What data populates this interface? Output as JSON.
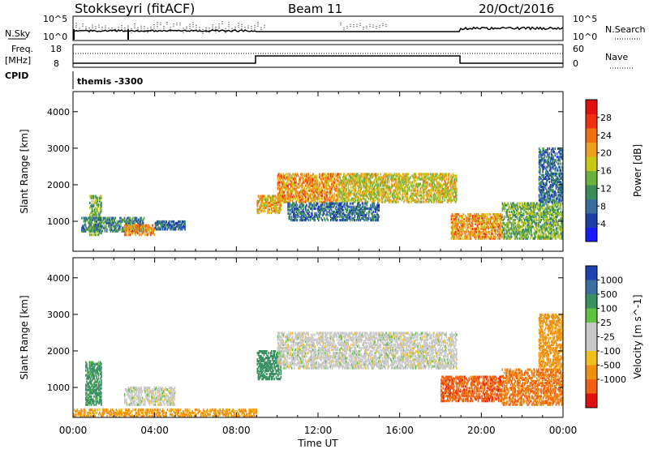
{
  "header": {
    "station": "Stokkseyri (fitACF)",
    "beam": "Beam 11",
    "date": "20/Oct/2016"
  },
  "noise_panel": {
    "left_label": "N.Sky",
    "left_ticks": [
      "10^5",
      "10^0"
    ],
    "right_ticks": [
      "10^5",
      "10^0"
    ],
    "right_label": "N.Search"
  },
  "freq_panel": {
    "left_label_top": "Freq.",
    "left_label_bottom": "[MHz]",
    "left_ticks": [
      "18",
      "8"
    ],
    "right_ticks": [
      "60",
      "0"
    ],
    "right_label": "Nave",
    "cpid_label": "CPID",
    "cpid_value": "themis -3300"
  },
  "x_axis": {
    "label": "Time UT",
    "ticks": [
      "00:00",
      "04:00",
      "08:00",
      "12:00",
      "16:00",
      "20:00",
      "00:00"
    ]
  },
  "colors": {
    "power": [
      "#1a1aff",
      "#1f3fa8",
      "#3a6e9e",
      "#3a8c5a",
      "#6ab23c",
      "#c8c814",
      "#f0a020",
      "#f07010",
      "#f03010",
      "#e01010"
    ],
    "velocity_pos": [
      "#2040b0",
      "#3a70a0",
      "#3a9060",
      "#60c040"
    ],
    "velocity_zero": "#c8c8c8",
    "velocity_neg": [
      "#f0c020",
      "#f09010",
      "#f06010",
      "#e01010"
    ]
  },
  "chart_data": [
    {
      "type": "heatmap",
      "title": "Power",
      "xlabel": "Time UT",
      "ylabel": "Slant Range [km]",
      "x_range": [
        "00:00",
        "24:00"
      ],
      "ylim": [
        180,
        4550
      ],
      "y_ticks": [
        1000,
        2000,
        3000,
        4000
      ],
      "colorbar": {
        "label": "Power [dB]",
        "ticks": [
          4,
          8,
          12,
          16,
          20,
          24,
          28
        ],
        "range": [
          0,
          32
        ]
      },
      "regions": [
        {
          "t0": 0.8,
          "t1": 1.4,
          "r0": 600,
          "r1": 1700,
          "mean_db": 14
        },
        {
          "t0": 0.4,
          "t1": 3.5,
          "r0": 700,
          "r1": 1100,
          "mean_db": 10
        },
        {
          "t0": 2.5,
          "t1": 4.0,
          "r0": 600,
          "r1": 900,
          "mean_db": 22
        },
        {
          "t0": 4.0,
          "t1": 5.5,
          "r0": 750,
          "r1": 1000,
          "mean_db": 8
        },
        {
          "t0": 9.0,
          "t1": 10.2,
          "r0": 1200,
          "r1": 1700,
          "mean_db": 20
        },
        {
          "t0": 10.0,
          "t1": 13.0,
          "r0": 1500,
          "r1": 2300,
          "mean_db": 22
        },
        {
          "t0": 13.0,
          "t1": 18.8,
          "r0": 1500,
          "r1": 2300,
          "mean_db": 18
        },
        {
          "t0": 10.5,
          "t1": 15.0,
          "r0": 1000,
          "r1": 1500,
          "mean_db": 8
        },
        {
          "t0": 18.5,
          "t1": 21.0,
          "r0": 500,
          "r1": 1200,
          "mean_db": 22
        },
        {
          "t0": 21.0,
          "t1": 24.0,
          "r0": 500,
          "r1": 1500,
          "mean_db": 14
        },
        {
          "t0": 22.8,
          "t1": 24.0,
          "r0": 1500,
          "r1": 3000,
          "mean_db": 8
        }
      ]
    },
    {
      "type": "heatmap",
      "title": "Velocity",
      "xlabel": "Time UT",
      "ylabel": "Slant Range [km]",
      "x_range": [
        "00:00",
        "24:00"
      ],
      "ylim": [
        180,
        4550
      ],
      "y_ticks": [
        1000,
        2000,
        3000,
        4000
      ],
      "colorbar": {
        "label": "Velocity [m s^-1]",
        "ticks": [
          "1000",
          "500",
          "100",
          "25",
          "-25",
          "-100",
          "-500",
          "-1000"
        ],
        "range": [
          -1250,
          1250
        ]
      },
      "regions": [
        {
          "t0": 0.6,
          "t1": 1.4,
          "r0": 500,
          "r1": 1700,
          "mean_v": 100
        },
        {
          "t0": 2.5,
          "t1": 5.0,
          "r0": 500,
          "r1": 1000,
          "mean_v": 0
        },
        {
          "t0": 0.0,
          "t1": 9.0,
          "r0": 180,
          "r1": 400,
          "mean_v": -80
        },
        {
          "t0": 9.0,
          "t1": 10.2,
          "r0": 1200,
          "r1": 2000,
          "mean_v": 200
        },
        {
          "t0": 10.0,
          "t1": 18.8,
          "r0": 1500,
          "r1": 2500,
          "mean_v": 0
        },
        {
          "t0": 18.0,
          "t1": 21.0,
          "r0": 600,
          "r1": 1300,
          "mean_v": -500
        },
        {
          "t0": 21.0,
          "t1": 24.0,
          "r0": 500,
          "r1": 1500,
          "mean_v": -300
        },
        {
          "t0": 22.8,
          "t1": 24.0,
          "r0": 1500,
          "r1": 3000,
          "mean_v": -100
        }
      ]
    }
  ]
}
